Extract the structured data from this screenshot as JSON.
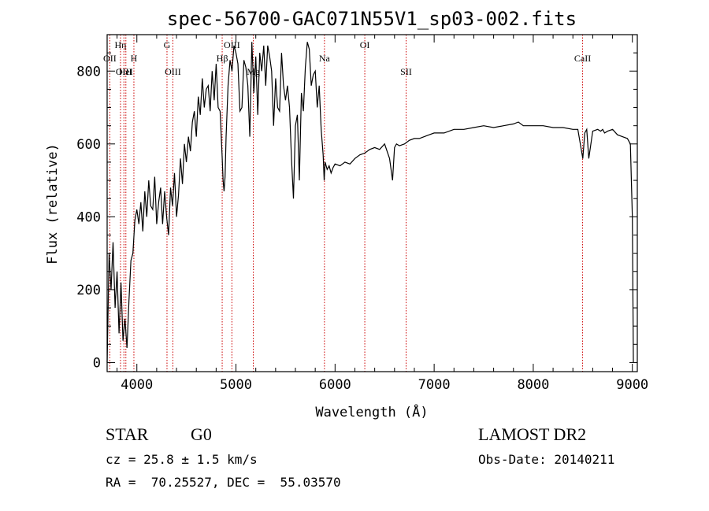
{
  "chart_data": {
    "type": "line",
    "title": "spec-56700-GAC071N55V1_sp03-002.fits",
    "xlabel": "Wavelength (Å)",
    "ylabel": "Flux (relative)",
    "xlim": [
      3700,
      9050
    ],
    "ylim": [
      -25,
      900
    ],
    "xticks": [
      4000,
      5000,
      6000,
      7000,
      8000,
      9000
    ],
    "yticks": [
      0,
      200,
      400,
      600,
      800
    ],
    "grid": false,
    "colors": {
      "spectrum": "#000000",
      "line_markers": "#cc0000"
    },
    "series": [
      {
        "x": [
          3700,
          3720,
          3740,
          3760,
          3780,
          3800,
          3820,
          3840,
          3860,
          3880,
          3900,
          3920,
          3940,
          3960,
          3980,
          4000,
          4020,
          4040,
          4060,
          4080,
          4100,
          4120,
          4140,
          4160,
          4180,
          4200,
          4220,
          4240,
          4260,
          4280,
          4300,
          4320,
          4340,
          4360,
          4380,
          4400,
          4420,
          4440,
          4460,
          4480,
          4500,
          4520,
          4540,
          4560,
          4580,
          4600,
          4620,
          4640,
          4660,
          4680,
          4700,
          4720,
          4740,
          4760,
          4780,
          4800,
          4820,
          4840,
          4860,
          4870,
          4880,
          4890,
          4900,
          4920,
          4940,
          4960,
          4980,
          5000,
          5020,
          5040,
          5060,
          5080,
          5100,
          5120,
          5140,
          5160,
          5180,
          5200,
          5220,
          5240,
          5260,
          5280,
          5300,
          5320,
          5340,
          5360,
          5380,
          5400,
          5420,
          5440,
          5460,
          5480,
          5500,
          5520,
          5540,
          5560,
          5580,
          5600,
          5620,
          5640,
          5660,
          5680,
          5700,
          5720,
          5740,
          5760,
          5780,
          5800,
          5820,
          5840,
          5860,
          5880,
          5890,
          5900,
          5920,
          5940,
          5960,
          5980,
          6000,
          6050,
          6100,
          6150,
          6200,
          6250,
          6300,
          6350,
          6400,
          6450,
          6500,
          6550,
          6580,
          6600,
          6620,
          6650,
          6700,
          6750,
          6800,
          6850,
          6900,
          6950,
          7000,
          7100,
          7200,
          7300,
          7400,
          7500,
          7600,
          7700,
          7800,
          7850,
          7900,
          8000,
          8100,
          8200,
          8300,
          8400,
          8450,
          8500,
          8520,
          8540,
          8560,
          8600,
          8650,
          8680,
          8700,
          8720,
          8750,
          8800,
          8850,
          8900,
          8950,
          8980,
          9000,
          9010
        ],
        "y": [
          0,
          300,
          200,
          330,
          150,
          250,
          80,
          220,
          60,
          120,
          40,
          170,
          280,
          300,
          390,
          420,
          380,
          440,
          360,
          470,
          400,
          500,
          430,
          420,
          510,
          380,
          440,
          480,
          380,
          470,
          400,
          350,
          480,
          430,
          520,
          400,
          460,
          560,
          490,
          600,
          550,
          620,
          580,
          660,
          690,
          620,
          730,
          680,
          780,
          700,
          750,
          760,
          690,
          800,
          720,
          820,
          700,
          690,
          570,
          500,
          470,
          510,
          620,
          760,
          830,
          800,
          870,
          850,
          820,
          690,
          700,
          830,
          810,
          760,
          620,
          880,
          740,
          840,
          680,
          850,
          800,
          870,
          760,
          870,
          840,
          800,
          650,
          780,
          700,
          690,
          850,
          760,
          720,
          760,
          700,
          560,
          450,
          650,
          680,
          500,
          740,
          690,
          810,
          880,
          860,
          760,
          790,
          800,
          700,
          760,
          640,
          570,
          500,
          550,
          530,
          540,
          520,
          535,
          545,
          540,
          550,
          545,
          560,
          570,
          575,
          585,
          590,
          585,
          600,
          560,
          500,
          590,
          600,
          595,
          600,
          610,
          615,
          615,
          620,
          625,
          630,
          630,
          640,
          640,
          645,
          650,
          645,
          650,
          655,
          660,
          650,
          650,
          650,
          645,
          645,
          640,
          640,
          560,
          630,
          640,
          560,
          635,
          640,
          635,
          640,
          630,
          635,
          640,
          625,
          620,
          615,
          600,
          400,
          0
        ]
      }
    ],
    "line_markers": [
      {
        "label": "OII",
        "x": 3727,
        "row": 2
      },
      {
        "label": "Hη",
        "x": 3835,
        "row": 1
      },
      {
        "label": "OIII",
        "x": 3869,
        "row": 3
      },
      {
        "label": "HeI",
        "x": 3889,
        "row": 3
      },
      {
        "label": "H",
        "x": 3970,
        "row": 2
      },
      {
        "label": "G",
        "x": 4304,
        "row": 1
      },
      {
        "label": "OIII",
        "x": 4363,
        "row": 3
      },
      {
        "label": "Hβ",
        "x": 4861,
        "row": 2
      },
      {
        "label": "OIII",
        "x": 4959,
        "row": 1
      },
      {
        "label": "Mg",
        "x": 5175,
        "row": 3
      },
      {
        "label": "Na",
        "x": 5893,
        "row": 2
      },
      {
        "label": "OI",
        "x": 6300,
        "row": 1
      },
      {
        "label": "SII",
        "x": 6717,
        "row": 3
      },
      {
        "label": "CaII",
        "x": 8498,
        "row": 2
      }
    ]
  },
  "info": {
    "object_class": "STAR",
    "subclass": "G0",
    "survey": "LAMOST DR2",
    "redshift": "cz = 25.8 ± 1.5 km/s",
    "obs_date": "Obs-Date: 20140211",
    "coords": "RA =  70.25527, DEC =  55.03570"
  }
}
